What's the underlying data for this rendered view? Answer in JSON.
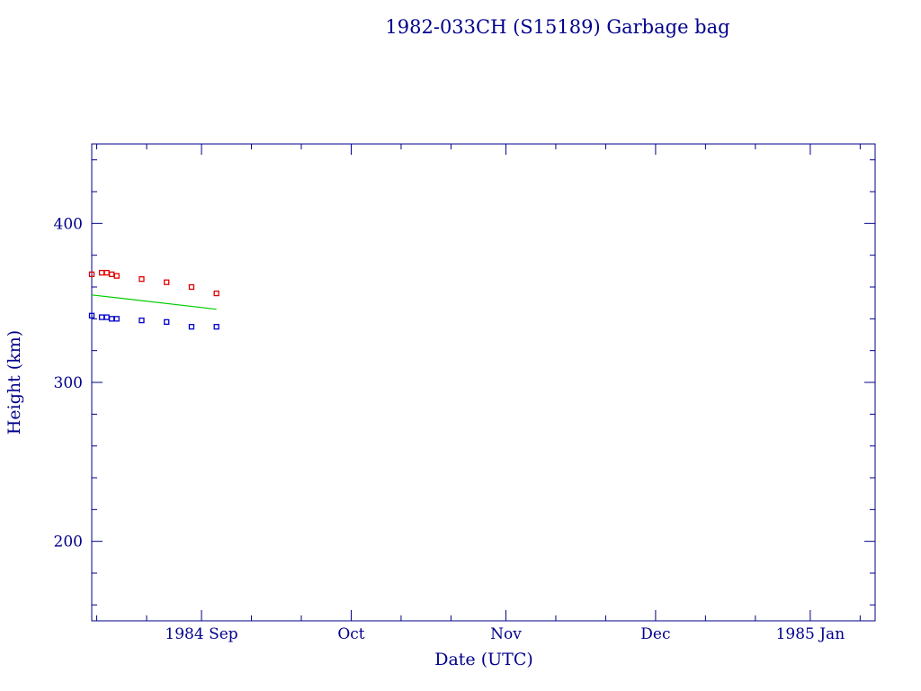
{
  "chart_data": {
    "type": "scatter",
    "title": "1982-033CH (S15189) Garbage bag",
    "xlabel": "Date (UTC)",
    "ylabel": "Height (km)",
    "x_axis": {
      "type": "date",
      "range": [
        "1984-08-10",
        "1985-01-14"
      ],
      "tick_labels": [
        {
          "date": "1984-09-01",
          "label": "1984 Sep"
        },
        {
          "date": "1984-10-01",
          "label": "Oct"
        },
        {
          "date": "1984-11-01",
          "label": "Nov"
        },
        {
          "date": "1984-12-01",
          "label": "Dec"
        },
        {
          "date": "1985-01-01",
          "label": "1985 Jan"
        }
      ]
    },
    "y_axis": {
      "range": [
        150,
        450
      ],
      "tick_labels": [
        200,
        300,
        400
      ]
    },
    "grid": false,
    "series": [
      {
        "kind": "points",
        "color": "#e00000",
        "points": [
          {
            "x": "1984-08-10",
            "y": 368
          },
          {
            "x": "1984-08-12",
            "y": 369
          },
          {
            "x": "1984-08-13",
            "y": 369
          },
          {
            "x": "1984-08-14",
            "y": 368
          },
          {
            "x": "1984-08-15",
            "y": 367
          },
          {
            "x": "1984-08-20",
            "y": 365
          },
          {
            "x": "1984-08-25",
            "y": 363
          },
          {
            "x": "1984-08-30",
            "y": 360
          },
          {
            "x": "1984-09-04",
            "y": 356
          }
        ]
      },
      {
        "kind": "points",
        "color": "#0000cc",
        "points": [
          {
            "x": "1984-08-10",
            "y": 342
          },
          {
            "x": "1984-08-12",
            "y": 341
          },
          {
            "x": "1984-08-13",
            "y": 341
          },
          {
            "x": "1984-08-14",
            "y": 340
          },
          {
            "x": "1984-08-15",
            "y": 340
          },
          {
            "x": "1984-08-20",
            "y": 339
          },
          {
            "x": "1984-08-25",
            "y": 338
          },
          {
            "x": "1984-08-30",
            "y": 335
          },
          {
            "x": "1984-09-04",
            "y": 335
          }
        ]
      },
      {
        "kind": "line",
        "color": "#00cc00",
        "points": [
          {
            "x": "1984-08-10",
            "y": 355
          },
          {
            "x": "1984-09-04",
            "y": 346
          }
        ]
      }
    ]
  }
}
